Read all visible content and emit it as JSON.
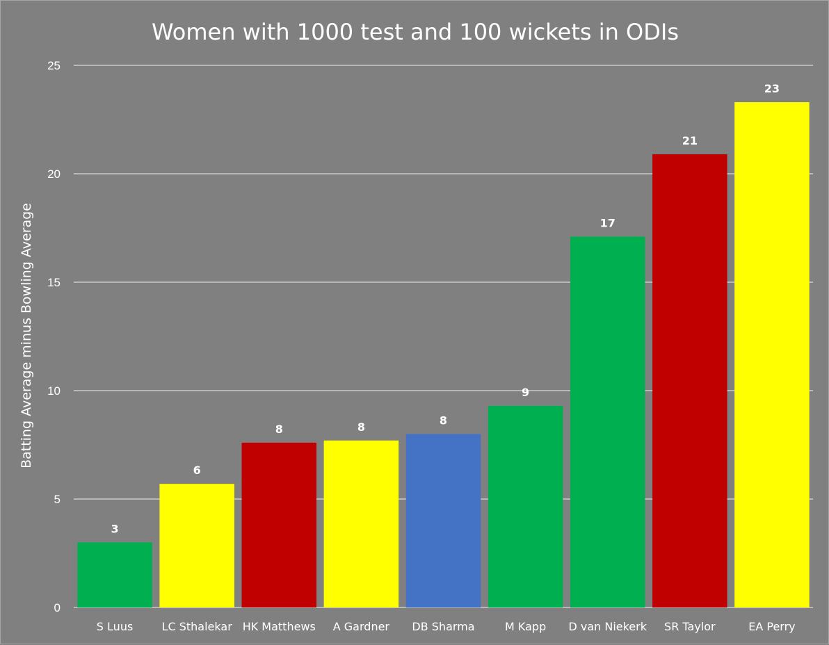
{
  "chart_data": {
    "type": "bar",
    "title": "Women with 1000 test and 100 wickets in ODIs",
    "xlabel": "",
    "ylabel": "Batting Average minus Bowling Average",
    "ylim": [
      0,
      25
    ],
    "yticks": [
      0,
      5,
      10,
      15,
      20,
      25
    ],
    "grid": true,
    "legend": "none",
    "categories": [
      "S Luus",
      "LC Sthalekar",
      "HK Matthews",
      "A Gardner",
      "DB Sharma",
      "M Kapp",
      "D van Niekerk",
      "SR Taylor",
      "EA Perry"
    ],
    "values": [
      3.0,
      5.7,
      7.6,
      7.7,
      8.0,
      9.3,
      17.1,
      20.9,
      23.3
    ],
    "data_labels": [
      "3",
      "6",
      "8",
      "8",
      "8",
      "9",
      "17",
      "21",
      "23"
    ],
    "bar_colors": [
      "#00b050",
      "#ffff00",
      "#c00000",
      "#ffff00",
      "#4472c4",
      "#00b050",
      "#00b050",
      "#c00000",
      "#ffff00"
    ],
    "background_color": "#808080",
    "text_color": "#ffffff"
  }
}
